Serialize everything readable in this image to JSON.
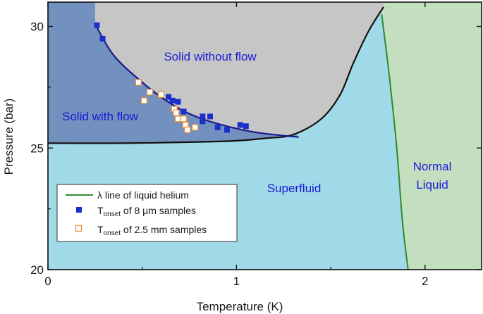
{
  "chart_data": {
    "type": "scatter",
    "title": "",
    "xlabel": "Temperature (K)",
    "ylabel": "Pressure (bar)",
    "xlim": [
      0,
      2.3
    ],
    "ylim": [
      20,
      31
    ],
    "x_ticks": [
      0,
      1,
      2
    ],
    "y_ticks": [
      20,
      25,
      30
    ],
    "grid": false,
    "legend_position": "bottom-left",
    "colors": {
      "solid_with_flow": "#7291be",
      "solid_without_flow": "#c6c6c6",
      "superfluid": "#a0d9e7",
      "normal_liquid": "#c4dfc0",
      "lambda_line": "#2e8b2e",
      "boundary": "#111111",
      "flow_boundary": "#1a1a8c",
      "series_8um": "#1a2ecc",
      "series_25mm": "#e8913a"
    },
    "regions": [
      {
        "name": "solid-with-flow",
        "label": "Solid with flow"
      },
      {
        "name": "solid-without-flow",
        "label": "Solid without flow"
      },
      {
        "name": "superfluid",
        "label": "Superfluid"
      },
      {
        "name": "normal-liquid",
        "label": "Normal\nLiquid"
      }
    ],
    "lines": {
      "melting_curve": [
        [
          0,
          25.2
        ],
        [
          0.4,
          25.2
        ],
        [
          0.8,
          25.25
        ],
        [
          1.0,
          25.3
        ],
        [
          1.15,
          25.4
        ],
        [
          1.3,
          25.55
        ],
        [
          1.45,
          26.2
        ],
        [
          1.55,
          27.2
        ],
        [
          1.62,
          28.5
        ],
        [
          1.7,
          29.8
        ],
        [
          1.78,
          30.8
        ]
      ],
      "flow_boundary": [
        [
          0.25,
          30.1
        ],
        [
          0.35,
          28.8
        ],
        [
          0.5,
          27.7
        ],
        [
          0.6,
          27.1
        ],
        [
          0.7,
          26.6
        ],
        [
          0.8,
          26.25
        ],
        [
          0.9,
          26.0
        ],
        [
          1.0,
          25.8
        ],
        [
          1.1,
          25.65
        ],
        [
          1.2,
          25.55
        ],
        [
          1.33,
          25.45
        ]
      ],
      "lambda_line": [
        [
          1.77,
          30.5
        ],
        [
          1.81,
          28.0
        ],
        [
          1.85,
          25.0
        ],
        [
          1.88,
          22.0
        ],
        [
          1.91,
          20.0
        ]
      ]
    },
    "series": [
      {
        "name": "T_onset of 8 μm samples",
        "marker": "filled-square",
        "points": [
          [
            0.26,
            30.05
          ],
          [
            0.29,
            29.5
          ],
          [
            0.64,
            27.1
          ],
          [
            0.66,
            26.95
          ],
          [
            0.69,
            26.9
          ],
          [
            0.72,
            26.5
          ],
          [
            0.82,
            26.3
          ],
          [
            0.82,
            26.1
          ],
          [
            0.86,
            26.3
          ],
          [
            0.9,
            25.85
          ],
          [
            0.95,
            25.75
          ],
          [
            1.02,
            25.95
          ],
          [
            1.05,
            25.9
          ]
        ]
      },
      {
        "name": "T_onset of 2.5 mm samples",
        "marker": "open-square",
        "points": [
          [
            0.48,
            27.7
          ],
          [
            0.51,
            26.95
          ],
          [
            0.54,
            27.3
          ],
          [
            0.6,
            27.2
          ],
          [
            0.67,
            26.6
          ],
          [
            0.68,
            26.45
          ],
          [
            0.69,
            26.2
          ],
          [
            0.72,
            26.2
          ],
          [
            0.73,
            25.95
          ],
          [
            0.74,
            25.75
          ],
          [
            0.78,
            25.85
          ]
        ]
      }
    ],
    "legend": {
      "lambda_label": "λ line of liquid helium",
      "series_8um": {
        "prefix": "T",
        "sub": "onset",
        "suffix": " of 8 μm samples"
      },
      "series_25mm": {
        "prefix": "T",
        "sub": "onset",
        "suffix": " of 2.5 mm samples"
      }
    }
  }
}
